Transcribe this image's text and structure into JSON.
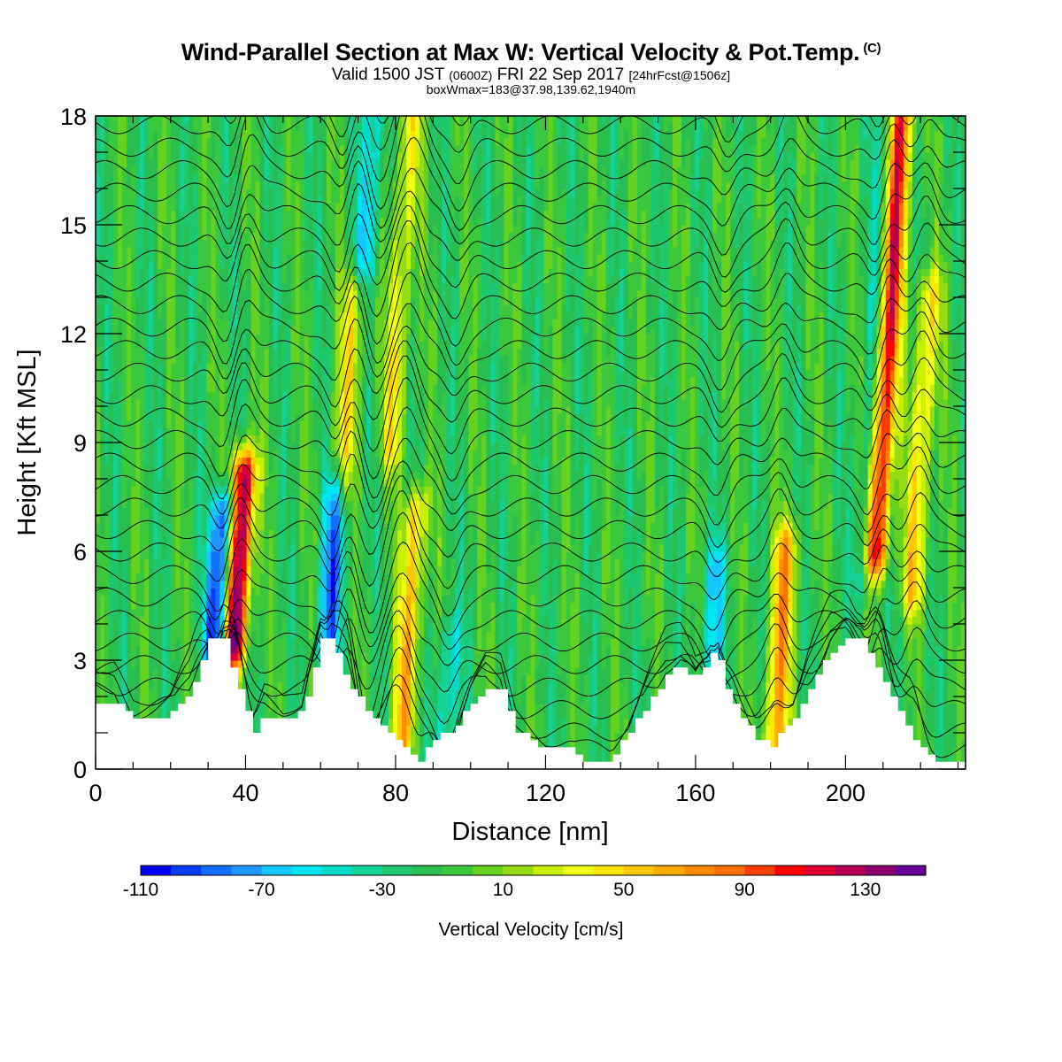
{
  "header": {
    "title": "Wind-Parallel Section at Max W: Vertical Velocity & Pot.Temp.",
    "title_tag": "(C)",
    "subtitle_a": "Valid 1500 JST",
    "subtitle_b": "(0600Z)",
    "subtitle_c": "FRI 22 Sep 2017",
    "subtitle_d": "[24hrFcst@1506z]",
    "subtitle2": "boxWmax=183@37.98,139.62,1940m"
  },
  "chart_data": {
    "type": "heatmap",
    "xlabel": "Distance [nm]",
    "ylabel": "Height [Kft MSL]",
    "xlim": [
      0,
      232
    ],
    "ylim": [
      0,
      18
    ],
    "x_ticks": [
      "0",
      "40",
      "80",
      "120",
      "160",
      "200"
    ],
    "x_tick_values": [
      0,
      40,
      80,
      120,
      160,
      200
    ],
    "y_ticks": [
      "0",
      "3",
      "6",
      "9",
      "12",
      "15",
      "18"
    ],
    "y_tick_values": [
      0,
      3,
      6,
      9,
      12,
      15,
      18
    ],
    "colorbar": {
      "title": "Vertical Velocity [cm/s]",
      "labels": [
        "-110",
        "-70",
        "-30",
        "10",
        "50",
        "90",
        "130"
      ],
      "label_values": [
        -110,
        -70,
        -30,
        10,
        50,
        90,
        130
      ],
      "min": -110,
      "max": 160,
      "step": 10,
      "colors": [
        "#0000ff",
        "#0a3cff",
        "#146eff",
        "#1e96ff",
        "#14c8ff",
        "#00e6f0",
        "#00dcc8",
        "#14d296",
        "#1ec86e",
        "#28be50",
        "#3cc83c",
        "#64d21e",
        "#96dc14",
        "#c8f000",
        "#f0ff14",
        "#ffe600",
        "#ffc800",
        "#ffaa00",
        "#ff8c00",
        "#ff6e00",
        "#ff3c00",
        "#ff0000",
        "#dc0032",
        "#b40050",
        "#8c006e",
        "#640096"
      ]
    },
    "updrafts": [
      {
        "x": 37,
        "w": 160,
        "zmin": 3.5,
        "zmax": 8.0
      },
      {
        "x": 208,
        "w": 140,
        "zmin": 6.0,
        "zmax": 18.0
      },
      {
        "x": 82,
        "w": 70,
        "zmin": 1.0,
        "zmax": 7.0
      },
      {
        "x": 181,
        "w": 80,
        "zmin": 0.5,
        "zmax": 6.0
      },
      {
        "x": 79,
        "w": 50,
        "zmin": 9.0,
        "zmax": 18.0
      },
      {
        "x": 218,
        "w": 60,
        "zmin": 5.0,
        "zmax": 13.0
      },
      {
        "x": 66,
        "w": 50,
        "zmin": 8.0,
        "zmax": 13.0
      }
    ],
    "downdrafts": [
      {
        "x": 32,
        "w": -95,
        "zmin": 3.5,
        "zmax": 7.0
      },
      {
        "x": 62,
        "w": -70,
        "zmin": 3.5,
        "zmax": 7.5
      },
      {
        "x": 93,
        "w": -40,
        "zmin": 0.5,
        "zmax": 3.5
      },
      {
        "x": 164,
        "w": -45,
        "zmin": 3.0,
        "zmax": 5.5
      },
      {
        "x": 205,
        "w": -45,
        "zmin": 5.5,
        "zmax": 18.0
      },
      {
        "x": 72,
        "w": -45,
        "zmin": 14.0,
        "zmax": 18.0
      }
    ],
    "terrain_kft": [
      [
        0,
        1.9
      ],
      [
        5,
        1.9
      ],
      [
        10,
        1.3
      ],
      [
        20,
        1.5
      ],
      [
        25,
        2.2
      ],
      [
        28,
        3.0
      ],
      [
        30,
        3.5
      ],
      [
        34,
        3.5
      ],
      [
        37,
        2.5
      ],
      [
        40,
        1.5
      ],
      [
        42,
        0.9
      ],
      [
        45,
        1.5
      ],
      [
        50,
        1.3
      ],
      [
        55,
        1.6
      ],
      [
        58,
        2.7
      ],
      [
        60,
        3.5
      ],
      [
        63,
        3.5
      ],
      [
        66,
        2.6
      ],
      [
        70,
        2.0
      ],
      [
        74,
        1.3
      ],
      [
        78,
        0.9
      ],
      [
        82,
        0.6
      ],
      [
        86,
        0.3
      ],
      [
        90,
        0.8
      ],
      [
        96,
        1.2
      ],
      [
        100,
        1.9
      ],
      [
        104,
        2.3
      ],
      [
        108,
        2.1
      ],
      [
        112,
        1.0
      ],
      [
        116,
        0.8
      ],
      [
        120,
        0.6
      ],
      [
        126,
        0.5
      ],
      [
        130,
        0.3
      ],
      [
        137,
        0.3
      ],
      [
        142,
        1.0
      ],
      [
        147,
        1.8
      ],
      [
        152,
        2.6
      ],
      [
        156,
        2.8
      ],
      [
        160,
        2.5
      ],
      [
        162,
        2.9
      ],
      [
        164,
        3.2
      ],
      [
        166,
        3.0
      ],
      [
        168,
        2.2
      ],
      [
        172,
        1.4
      ],
      [
        176,
        0.8
      ],
      [
        180,
        0.7
      ],
      [
        186,
        1.3
      ],
      [
        190,
        2.2
      ],
      [
        196,
        3.3
      ],
      [
        200,
        3.6
      ],
      [
        204,
        3.6
      ],
      [
        208,
        2.9
      ],
      [
        212,
        2.0
      ],
      [
        216,
        1.2
      ],
      [
        220,
        0.6
      ],
      [
        224,
        0.3
      ],
      [
        232,
        0.3
      ]
    ]
  }
}
